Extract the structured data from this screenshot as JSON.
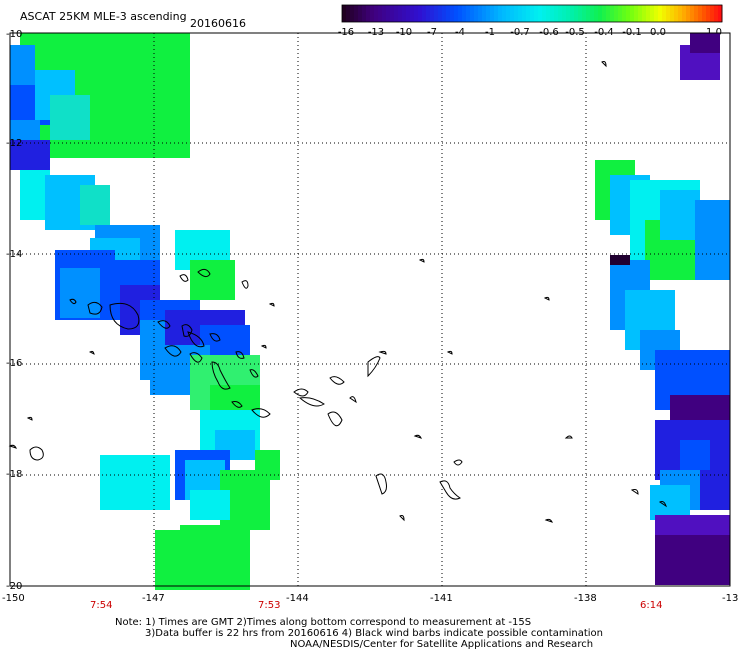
{
  "header": {
    "title": "ASCAT 25KM MLE-3 ascending",
    "date": "20160616"
  },
  "colorbar": {
    "labels": [
      "-16",
      "-13",
      "-10",
      "-7",
      "-4",
      "-1",
      "-0.7",
      "-0.6",
      "-0.5",
      "-0.4",
      "-0.1",
      "0.0",
      "1.0"
    ],
    "colors": [
      "#2a0033",
      "#4b0096",
      "#2a2ad0",
      "#0a40ff",
      "#0a90ff",
      "#10d8f0",
      "#10f0c0",
      "#10f060",
      "#40ff20",
      "#c0ff00",
      "#ffe000",
      "#ff9000",
      "#ff2000"
    ]
  },
  "axes": {
    "lat_labels": [
      "-10",
      "-12",
      "-14",
      "-16",
      "-18",
      "-20"
    ],
    "lon_labels": [
      "-150",
      "-147",
      "-144",
      "-141",
      "-138",
      "-13"
    ],
    "times": [
      "7:54",
      "7:53",
      "6:14"
    ]
  },
  "footer": {
    "line1": "Note: 1) Times are GMT 2)Times along bottom correspond to measurement at -15S",
    "line2": "3)Data buffer is 22 hrs from 20160616 4) Black wind barbs indicate possible contamination",
    "line3": "NOAA/NESDIS/Center for Satellite Applications and Research"
  }
}
